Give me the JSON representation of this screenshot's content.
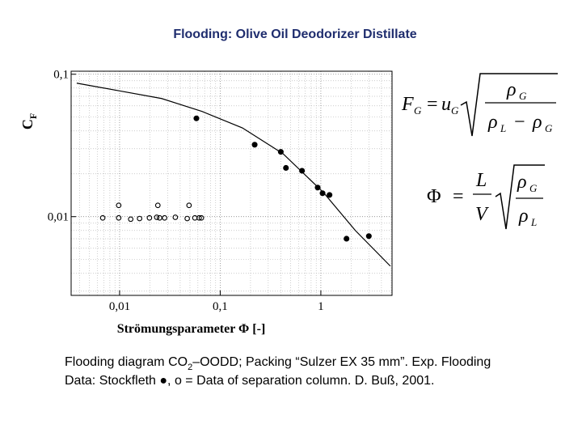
{
  "title": "Flooding: Olive Oil Deodorizer Distillate",
  "chart_data": {
    "type": "scatter",
    "xlabel": "Strömungsparameter Φ [-]",
    "ylabel": "C",
    "ylabel_sub": "F",
    "log_x": true,
    "log_y": true,
    "grid": true,
    "xlim": [
      0.0033,
      5.1
    ],
    "ylim": [
      0.0028,
      0.105
    ],
    "xticks": [
      {
        "value": 0.01,
        "label": "0,01"
      },
      {
        "value": 0.1,
        "label": "0,1"
      },
      1
    ],
    "yticks": [
      {
        "value": 0.01,
        "label": "0,01"
      },
      {
        "value": 0.1,
        "label": "0,1"
      }
    ],
    "series": [
      {
        "type": "scatter",
        "marker": "filled",
        "color": "#000000",
        "x": [
          0.058,
          0.22,
          0.4,
          0.45,
          0.65,
          0.93,
          1.04,
          1.22,
          1.8,
          3.0
        ],
        "values": [
          0.049,
          0.032,
          0.0285,
          0.022,
          0.021,
          0.016,
          0.0146,
          0.0142,
          0.007,
          0.0073
        ]
      },
      {
        "type": "scatter",
        "marker": "open",
        "color": "#000000",
        "x": [
          0.0068,
          0.0098,
          0.0098,
          0.0129,
          0.0158,
          0.0198,
          0.0234,
          0.024,
          0.025,
          0.028,
          0.0358,
          0.047,
          0.049,
          0.056,
          0.0617,
          0.065
        ],
        "values": [
          0.0098,
          0.0098,
          0.012,
          0.0096,
          0.0097,
          0.0098,
          0.0099,
          0.012,
          0.0098,
          0.0098,
          0.0099,
          0.0097,
          0.012,
          0.0098,
          0.0098,
          0.0098
        ]
      },
      {
        "type": "line",
        "color": "#000000",
        "x": [
          0.00375,
          0.0104,
          0.0262,
          0.066,
          0.166,
          0.42,
          1.06,
          2.2,
          4.9
        ],
        "values": [
          0.0866,
          0.076,
          0.0675,
          0.0548,
          0.042,
          0.0277,
          0.0148,
          0.008,
          0.0045
        ]
      }
    ]
  },
  "formula_1": [
    "F",
    "G",
    "=",
    "u",
    "G",
    "ρ",
    "G",
    "ρ",
    "L",
    "−",
    "ρ",
    "G"
  ],
  "formula_2": [
    "Φ",
    "=",
    "L",
    "V",
    "ρ",
    "G",
    "ρ",
    "L"
  ],
  "caption": {
    "line_1": [
      "Flooding diagram CO",
      "2",
      "–OODD; Packing “Sulzer EX 35 mm”.  Exp. Flooding"
    ],
    "line_2": "Data: Stockfleth ●, o = Data of separation column. D. Buß, 2001."
  }
}
